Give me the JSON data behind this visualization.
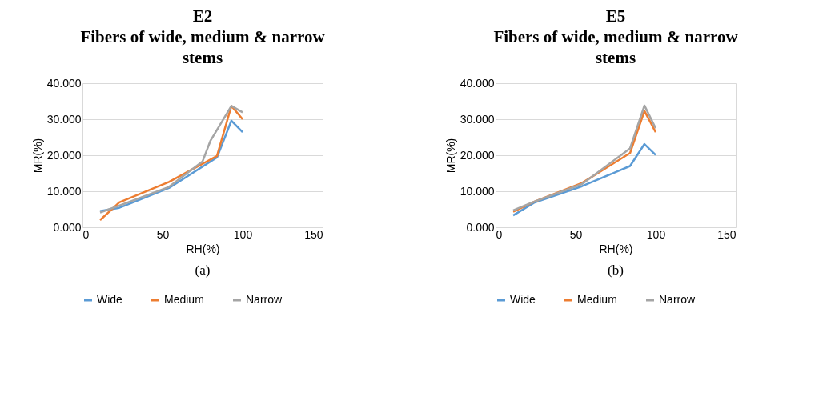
{
  "chart_data": [
    {
      "type": "line",
      "title": "E2",
      "subtitle": "Fibers of wide, medium & narrow stems",
      "xlabel": "RH(%)",
      "ylabel": "MR(%)",
      "x": [
        11,
        23,
        54,
        84,
        93,
        100
      ],
      "series": [
        {
          "name": "Wide",
          "color": "#5b9bd5",
          "values": [
            4.5,
            5.4,
            10.9,
            19.4,
            29.6,
            26.4
          ]
        },
        {
          "name": "Medium",
          "color": "#ed7d31",
          "values": [
            2.0,
            6.9,
            12.6,
            19.8,
            33.7,
            30.0
          ]
        },
        {
          "name": "Narrow",
          "color": "#a5a5a5",
          "x": [
            11,
            23,
            54,
            75,
            80,
            93,
            100
          ],
          "values": [
            4.1,
            6.0,
            11.2,
            18.3,
            24.1,
            33.7,
            31.9
          ]
        }
      ],
      "xlim": [
        0,
        150
      ],
      "xticks": [
        0,
        50,
        100,
        150
      ],
      "ylim": [
        0,
        40
      ],
      "yticks": [
        {
          "value": 0,
          "label": "0.000"
        },
        {
          "value": 10,
          "label": "10.000"
        },
        {
          "value": 20,
          "label": "20.000"
        },
        {
          "value": 30,
          "label": "30.000"
        },
        {
          "value": 40,
          "label": "40.000"
        }
      ],
      "grid": true,
      "legend": "bottom",
      "marker": "none",
      "line_style": "solid",
      "annotations": [
        "(a)"
      ]
    },
    {
      "type": "line",
      "title": "E5",
      "subtitle": "Fibers of wide, medium & narrow stems",
      "xlabel": "RH(%)",
      "ylabel": "MR(%)",
      "x": [
        11,
        24,
        54,
        84,
        93,
        100
      ],
      "series": [
        {
          "name": "Wide",
          "color": "#5b9bd5",
          "values": [
            3.3,
            6.8,
            11.4,
            17.0,
            23.1,
            20.1
          ]
        },
        {
          "name": "Medium",
          "color": "#ed7d31",
          "values": [
            4.3,
            7.1,
            12.3,
            20.6,
            32.3,
            26.4
          ]
        },
        {
          "name": "Narrow",
          "color": "#a5a5a5",
          "values": [
            4.7,
            7.1,
            12.0,
            21.9,
            33.8,
            27.5
          ]
        }
      ],
      "xlim": [
        0,
        150
      ],
      "xticks": [
        0,
        50,
        100,
        150
      ],
      "ylim": [
        0,
        40
      ],
      "yticks": [
        {
          "value": 0,
          "label": "0.000"
        },
        {
          "value": 10,
          "label": "10.000"
        },
        {
          "value": 20,
          "label": "20.000"
        },
        {
          "value": 30,
          "label": "30.000"
        },
        {
          "value": 40,
          "label": "40.000"
        }
      ],
      "grid": true,
      "legend": "bottom",
      "marker": "none",
      "line_style": "solid",
      "annotations": [
        "(b)"
      ]
    }
  ]
}
